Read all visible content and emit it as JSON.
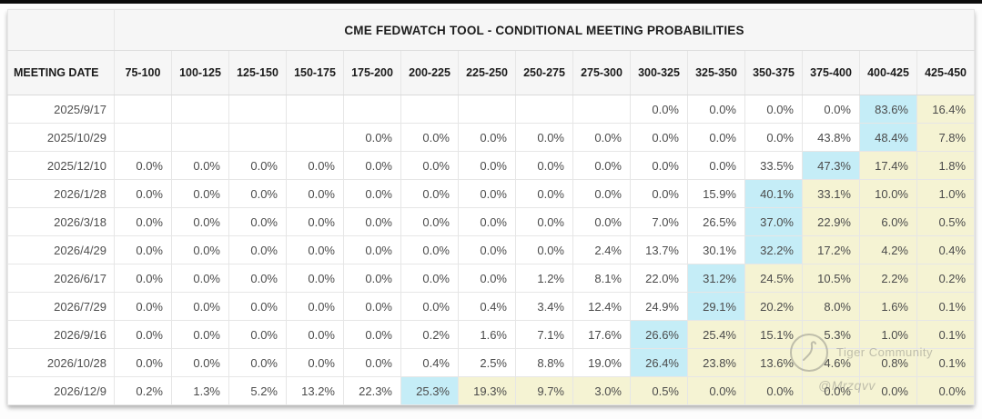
{
  "top_bar": {
    "color": "#0d0d0d"
  },
  "colors": {
    "max_highlight": "#c5edf7",
    "tail_highlight": "#f5f3d3",
    "header_bg": "#f6f6f6",
    "top_bar": "#0d0d0d"
  },
  "watermark": {
    "logo_icon": "tiger-community-stamp",
    "line1": "Tiger Community",
    "line2": "@Mrzqvv"
  },
  "chart_data": {
    "type": "table",
    "title": "CME FEDWATCH TOOL - CONDITIONAL MEETING PROBABILITIES",
    "row_header": "MEETING DATE",
    "columns": [
      "75-100",
      "100-125",
      "125-150",
      "150-175",
      "175-200",
      "200-225",
      "225-250",
      "250-275",
      "275-300",
      "300-325",
      "325-350",
      "350-375",
      "375-400",
      "400-425",
      "425-450"
    ],
    "highlight_rule": "highest-probability cell per row is cyan; every cell to its right is pale yellow",
    "rows": [
      {
        "date": "2025/9/17",
        "max_col": 13,
        "values": [
          "",
          "",
          "",
          "",
          "",
          "",
          "",
          "",
          "",
          "0.0%",
          "0.0%",
          "0.0%",
          "0.0%",
          "83.6%",
          "16.4%"
        ]
      },
      {
        "date": "2025/10/29",
        "max_col": 13,
        "values": [
          "",
          "",
          "",
          "",
          "0.0%",
          "0.0%",
          "0.0%",
          "0.0%",
          "0.0%",
          "0.0%",
          "0.0%",
          "0.0%",
          "43.8%",
          "48.4%",
          "7.8%"
        ]
      },
      {
        "date": "2025/12/10",
        "max_col": 12,
        "values": [
          "0.0%",
          "0.0%",
          "0.0%",
          "0.0%",
          "0.0%",
          "0.0%",
          "0.0%",
          "0.0%",
          "0.0%",
          "0.0%",
          "0.0%",
          "33.5%",
          "47.3%",
          "17.4%",
          "1.8%"
        ]
      },
      {
        "date": "2026/1/28",
        "max_col": 11,
        "values": [
          "0.0%",
          "0.0%",
          "0.0%",
          "0.0%",
          "0.0%",
          "0.0%",
          "0.0%",
          "0.0%",
          "0.0%",
          "0.0%",
          "15.9%",
          "40.1%",
          "33.1%",
          "10.0%",
          "1.0%"
        ]
      },
      {
        "date": "2026/3/18",
        "max_col": 11,
        "values": [
          "0.0%",
          "0.0%",
          "0.0%",
          "0.0%",
          "0.0%",
          "0.0%",
          "0.0%",
          "0.0%",
          "0.0%",
          "7.0%",
          "26.5%",
          "37.0%",
          "22.9%",
          "6.0%",
          "0.5%"
        ]
      },
      {
        "date": "2026/4/29",
        "max_col": 11,
        "values": [
          "0.0%",
          "0.0%",
          "0.0%",
          "0.0%",
          "0.0%",
          "0.0%",
          "0.0%",
          "0.0%",
          "2.4%",
          "13.7%",
          "30.1%",
          "32.2%",
          "17.2%",
          "4.2%",
          "0.4%"
        ]
      },
      {
        "date": "2026/6/17",
        "max_col": 10,
        "values": [
          "0.0%",
          "0.0%",
          "0.0%",
          "0.0%",
          "0.0%",
          "0.0%",
          "0.0%",
          "1.2%",
          "8.1%",
          "22.0%",
          "31.2%",
          "24.5%",
          "10.5%",
          "2.2%",
          "0.2%"
        ]
      },
      {
        "date": "2026/7/29",
        "max_col": 10,
        "values": [
          "0.0%",
          "0.0%",
          "0.0%",
          "0.0%",
          "0.0%",
          "0.0%",
          "0.4%",
          "3.4%",
          "12.4%",
          "24.9%",
          "29.1%",
          "20.2%",
          "8.0%",
          "1.6%",
          "0.1%"
        ]
      },
      {
        "date": "2026/9/16",
        "max_col": 9,
        "values": [
          "0.0%",
          "0.0%",
          "0.0%",
          "0.0%",
          "0.0%",
          "0.2%",
          "1.6%",
          "7.1%",
          "17.6%",
          "26.6%",
          "25.4%",
          "15.1%",
          "5.3%",
          "1.0%",
          "0.1%"
        ]
      },
      {
        "date": "2026/10/28",
        "max_col": 9,
        "values": [
          "0.0%",
          "0.0%",
          "0.0%",
          "0.0%",
          "0.0%",
          "0.4%",
          "2.5%",
          "8.8%",
          "19.0%",
          "26.4%",
          "23.8%",
          "13.6%",
          "4.6%",
          "0.8%",
          "0.1%"
        ]
      },
      {
        "date": "2026/12/9",
        "max_col": 5,
        "values": [
          "0.2%",
          "1.3%",
          "5.2%",
          "13.2%",
          "22.3%",
          "25.3%",
          "19.3%",
          "9.7%",
          "3.0%",
          "0.5%",
          "0.0%",
          "0.0%",
          "0.0%",
          "0.0%",
          "0.0%"
        ]
      }
    ]
  }
}
